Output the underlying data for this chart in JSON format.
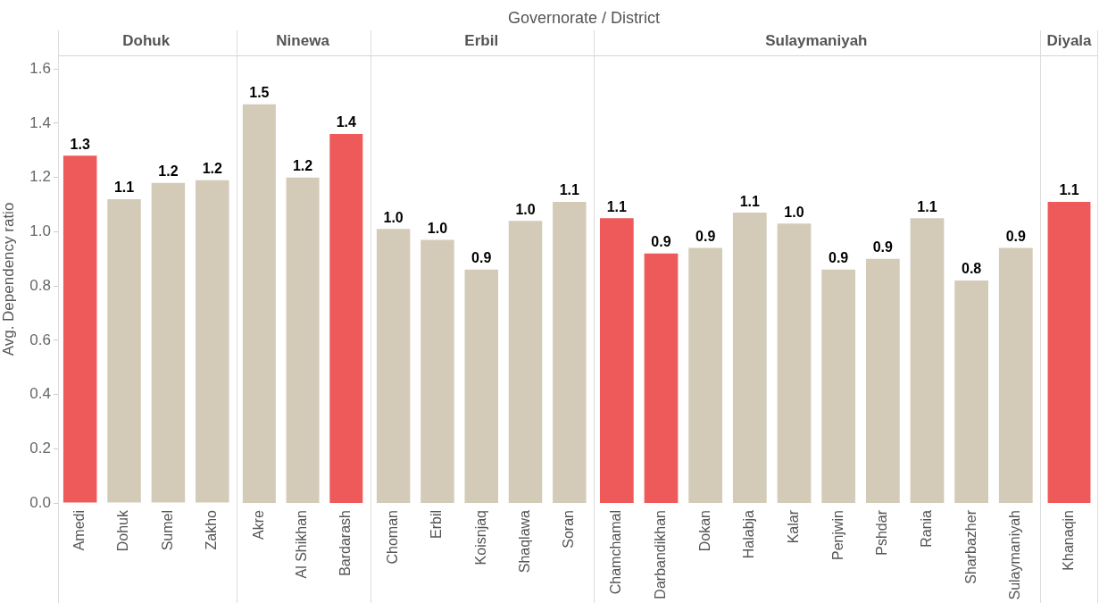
{
  "chart_data": [
    {
      "type": "bar",
      "title": "Dohuk",
      "ylabel": "Avg. Dependency ratio",
      "annotations": [
        "Governorate  /  District"
      ],
      "categories": [
        "Amedi",
        "Dohuk",
        "Sumel",
        "Zakho"
      ],
      "values": [
        1.28,
        1.12,
        1.18,
        1.19
      ],
      "colors": [
        "#ee5a59",
        "#d3cbb8",
        "#d3cbb8",
        "#d3cbb8"
      ],
      "value_labels": [
        "1.3",
        "1.1",
        "1.2",
        "1.2"
      ],
      "ylim": [
        0,
        1.65
      ],
      "yticks": [
        {
          "value": 0,
          "label": "0.0"
        },
        {
          "value": 0.2,
          "label": "0.2"
        },
        {
          "value": 0.4,
          "label": "0.4"
        },
        {
          "value": 0.6,
          "label": "0.6"
        },
        {
          "value": 0.8,
          "label": "0.8"
        },
        {
          "value": 1,
          "label": "1.0"
        },
        {
          "value": 1.2,
          "label": "1.2"
        },
        {
          "value": 1.4,
          "label": "1.4"
        },
        {
          "value": 1.6,
          "label": "1.6"
        }
      ],
      "grid": false,
      "legend": false
    },
    {
      "type": "bar",
      "title": "Ninewa",
      "categories": [
        "Akre",
        "Al Shikhan",
        "Bardarash"
      ],
      "values": [
        1.47,
        1.2,
        1.36
      ],
      "colors": [
        "#d3cbb8",
        "#d3cbb8",
        "#ee5a59"
      ],
      "value_labels": [
        "1.5",
        "1.2",
        "1.4"
      ],
      "ylim": [
        0,
        1.65
      ],
      "tick_labels": "x",
      "grid": false,
      "legend": false
    },
    {
      "type": "bar",
      "title": "Erbil",
      "categories": [
        "Choman",
        "Erbil",
        "Koisnjaq",
        "Shaqlawa",
        "Soran"
      ],
      "values": [
        1.01,
        0.97,
        0.86,
        1.04,
        1.11
      ],
      "colors": [
        "#d3cbb8",
        "#d3cbb8",
        "#d3cbb8",
        "#d3cbb8",
        "#d3cbb8"
      ],
      "value_labels": [
        "1.0",
        "1.0",
        "0.9",
        "1.0",
        "1.1"
      ],
      "ylim": [
        0,
        1.65
      ],
      "tick_labels": "x",
      "grid": false,
      "legend": false
    },
    {
      "type": "bar",
      "title": "Sulaymaniyah",
      "categories": [
        "Chamchamal",
        "Darbandikhan",
        "Dokan",
        "Halabja",
        "Kalar",
        "Penjwin",
        "Pshdar",
        "Rania",
        "Sharbazher",
        "Sulaymaniyah"
      ],
      "values": [
        1.05,
        0.92,
        0.94,
        1.07,
        1.03,
        0.86,
        0.9,
        1.05,
        0.82,
        0.94
      ],
      "colors": [
        "#ee5a59",
        "#ee5a59",
        "#d3cbb8",
        "#d3cbb8",
        "#d3cbb8",
        "#d3cbb8",
        "#d3cbb8",
        "#d3cbb8",
        "#d3cbb8",
        "#d3cbb8"
      ],
      "value_labels": [
        "1.1",
        "0.9",
        "0.9",
        "1.1",
        "1.0",
        "0.9",
        "0.9",
        "1.1",
        "0.8",
        "0.9"
      ],
      "ylim": [
        0,
        1.65
      ],
      "tick_labels": "x",
      "grid": false,
      "legend": false
    },
    {
      "type": "bar",
      "title": "Diyala",
      "categories": [
        "Khanaqin"
      ],
      "values": [
        1.11
      ],
      "colors": [
        "#ee5a59"
      ],
      "value_labels": [
        "1.1"
      ],
      "ylim": [
        0,
        1.65
      ],
      "tick_labels": "x",
      "grid": false,
      "legend": false
    }
  ]
}
